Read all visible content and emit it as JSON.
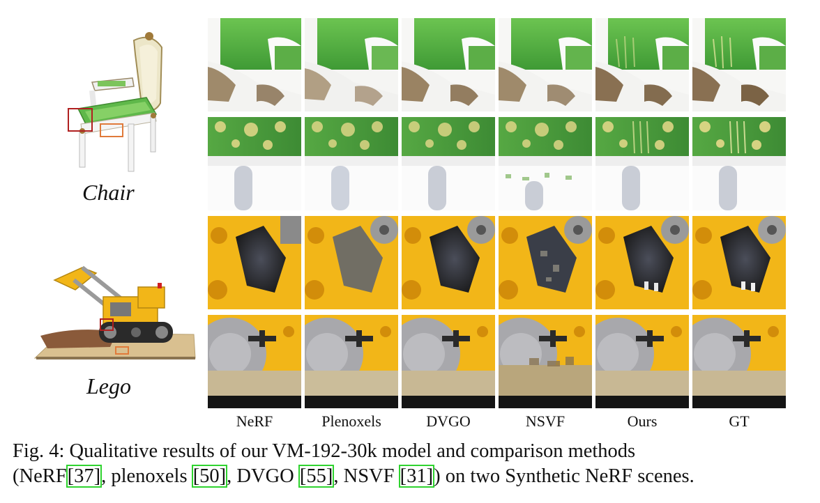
{
  "scenes": [
    {
      "name": "Chair"
    },
    {
      "name": "Lego"
    }
  ],
  "methods": [
    "NeRF",
    "Plenoxels",
    "DVGO",
    "NSVF",
    "Ours",
    "GT"
  ],
  "caption": {
    "prefix": "Fig. 4: Qualitative results of our VM-192-30k model and comparison methods",
    "line2_a": "(NeRF",
    "ref1": "[37]",
    "line2_b": ", plenoxels ",
    "ref2": "[50]",
    "line2_c": ", DVGO ",
    "ref3": "[55]",
    "line2_d": ", NSVF ",
    "ref4": "[31]",
    "line2_e": ") on two Synthetic NeRF scenes."
  },
  "colors": {
    "chair_green": "#5fb84a",
    "chair_cream": "#ece6c8",
    "lego_yellow": "#f2b618",
    "lego_gray": "#9a9a9a",
    "citation_box": "#2fd32f",
    "inset_red": "#b02020",
    "inset_orange": "#e07a3a"
  }
}
